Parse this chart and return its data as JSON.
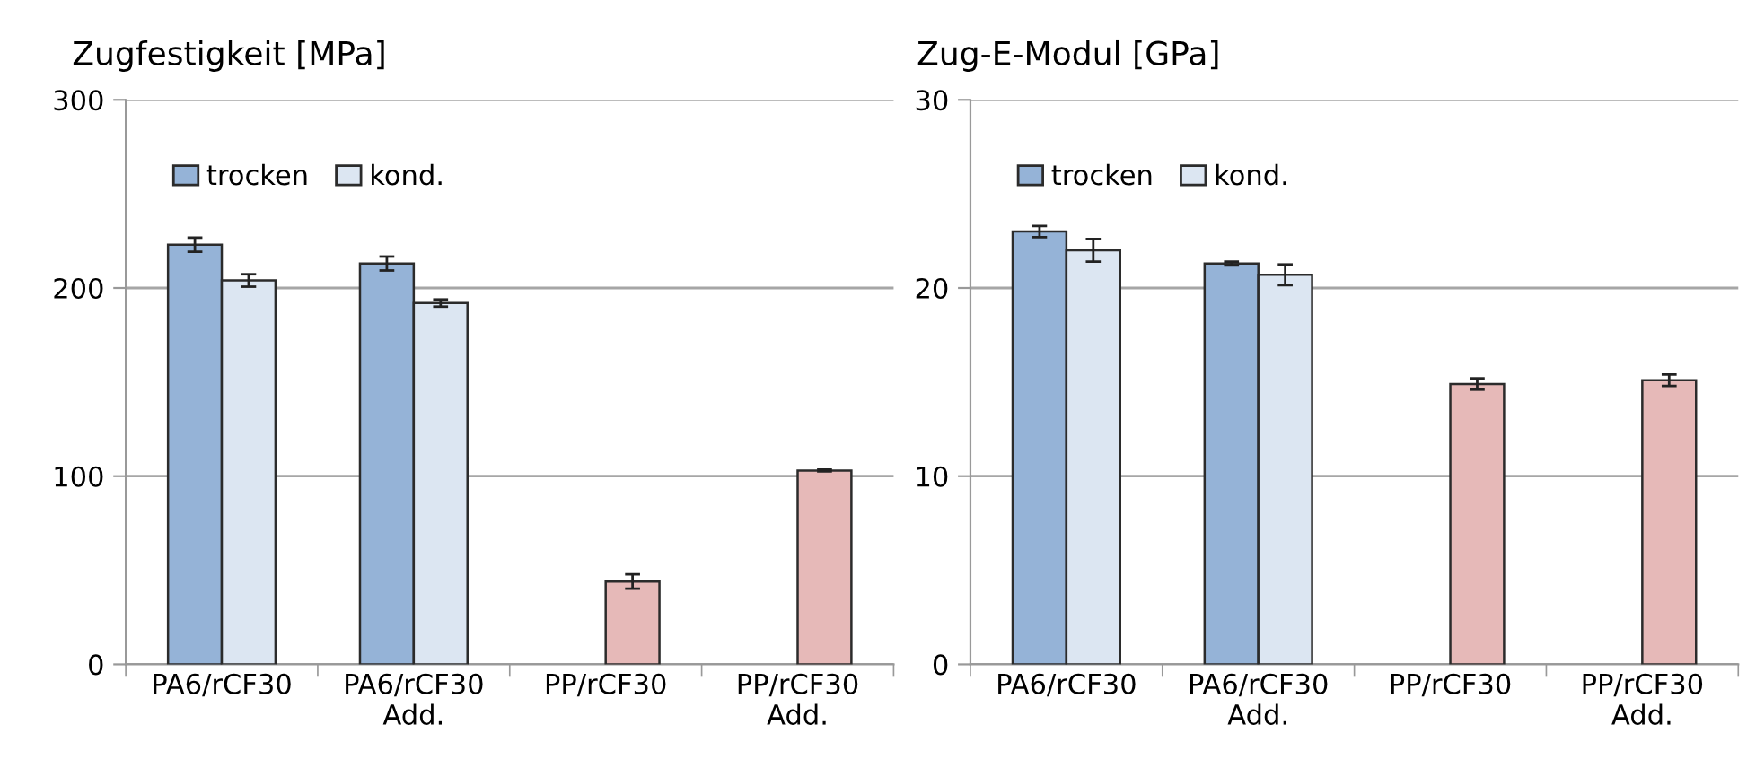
{
  "chart_data": [
    {
      "type": "bar",
      "title": "Zugfestigkeit [MPa]",
      "categories": [
        "PA6/rCF30",
        "PA6/rCF30\nAdd.",
        "PP/rCF30",
        "PP/rCF30\nAdd."
      ],
      "ylim": [
        0,
        300
      ],
      "yticks": [
        0,
        100,
        200,
        300
      ],
      "grid": "y",
      "legend": "top left",
      "series": [
        {
          "name": "trocken",
          "color": "#95b3d7",
          "values": [
            223,
            213,
            null,
            null
          ],
          "errors": [
            3.8,
            3.7,
            null,
            null
          ]
        },
        {
          "name": "kond.",
          "color": "#dce6f2",
          "values": [
            204,
            192,
            null,
            null
          ],
          "errors": [
            3.3,
            1.9,
            null,
            null
          ]
        },
        {
          "color": "#e6b9b8",
          "values": [
            null,
            null,
            44,
            103
          ],
          "errors": [
            null,
            null,
            3.8,
            0.5
          ]
        }
      ]
    },
    {
      "type": "bar",
      "title": "Zug-E-Modul [GPa]",
      "categories": [
        "PA6/rCF30",
        "PA6/rCF30\nAdd.",
        "PP/rCF30",
        "PP/rCF30\nAdd."
      ],
      "ylim": [
        0,
        30
      ],
      "yticks": [
        0,
        10,
        20,
        30
      ],
      "grid": "y",
      "legend": "top left",
      "series": [
        {
          "name": "trocken",
          "color": "#95b3d7",
          "values": [
            23.0,
            21.3,
            null,
            null
          ],
          "errors": [
            0.3,
            0.1,
            null,
            null
          ]
        },
        {
          "name": "kond.",
          "color": "#dce6f2",
          "values": [
            22.0,
            20.7,
            null,
            null
          ],
          "errors": [
            0.6,
            0.55,
            null,
            null
          ]
        },
        {
          "color": "#e6b9b8",
          "values": [
            null,
            null,
            14.9,
            15.1
          ],
          "errors": [
            null,
            null,
            0.3,
            0.3
          ]
        }
      ]
    }
  ]
}
